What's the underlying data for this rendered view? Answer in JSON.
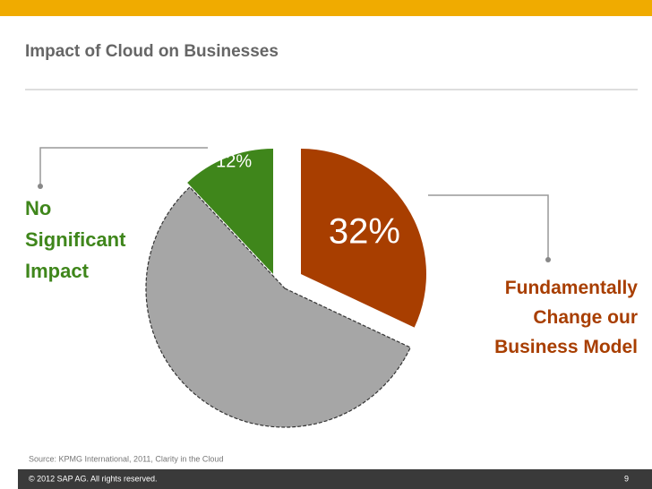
{
  "title": "Impact of Cloud on Businesses",
  "chart_data": {
    "type": "pie",
    "categories": [
      "Fundamentally Change our Business Model",
      null,
      "No Significant Impact"
    ],
    "values": [
      32,
      56,
      12
    ],
    "value_labels": [
      "32%",
      null,
      "12%"
    ],
    "colors": [
      "#a83e00",
      "#a6a6a6",
      "#3f861b"
    ]
  },
  "source": "Source: KPMG International, 2011, Clarity in the Cloud",
  "footer": {
    "copyright": "© 2012 SAP AG. All rights reserved.",
    "page": "9"
  }
}
